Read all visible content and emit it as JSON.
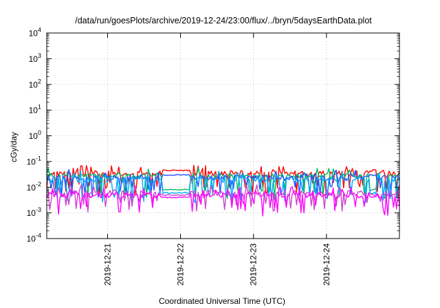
{
  "chart_data": {
    "type": "line",
    "title": "/data/run/goesPlots/archive/2019-12-24/23:00/flux/../bryn/5daysEarthData.plot",
    "xlabel": "Coordinated Universal Time (UTC)",
    "ylabel": "cGy/day",
    "yscale": "log",
    "ylim": [
      0.0001,
      10000
    ],
    "y_ticks": [
      {
        "base": "10",
        "exp": "-4"
      },
      {
        "base": "10",
        "exp": "-3"
      },
      {
        "base": "10",
        "exp": "-2"
      },
      {
        "base": "10",
        "exp": "-1"
      },
      {
        "base": "10",
        "exp": "0"
      },
      {
        "base": "10",
        "exp": "1"
      },
      {
        "base": "10",
        "exp": "2"
      },
      {
        "base": "10",
        "exp": "3"
      },
      {
        "base": "10",
        "exp": "4"
      }
    ],
    "xlim": [
      "2019-12-20T04:00",
      "2019-12-25T00:00"
    ],
    "x_ticks": [
      "2019-12-21",
      "2019-12-22",
      "2019-12-23",
      "2019-12-24"
    ],
    "grid": true,
    "legend": "none",
    "series": [
      {
        "color": "#ff0000",
        "base": 0.035,
        "dips": 0.02,
        "gapLevel": 0.045
      },
      {
        "color": "#00bb66",
        "base": 0.028,
        "dips": 0.012,
        "gapLevel": 0.008
      },
      {
        "color": "#2255ff",
        "base": 0.024,
        "dips": 0.015,
        "gapLevel": 0.03
      },
      {
        "color": "#00aaff",
        "base": 0.02,
        "dips": 0.01,
        "gapLevel": 0.006
      },
      {
        "color": "#cc44cc",
        "base": 0.006,
        "dips": 0.004,
        "gapLevel": 0.005
      },
      {
        "color": "#ff00ff",
        "base": 0.005,
        "dips": 0.003,
        "gapLevel": 0.004
      }
    ]
  }
}
